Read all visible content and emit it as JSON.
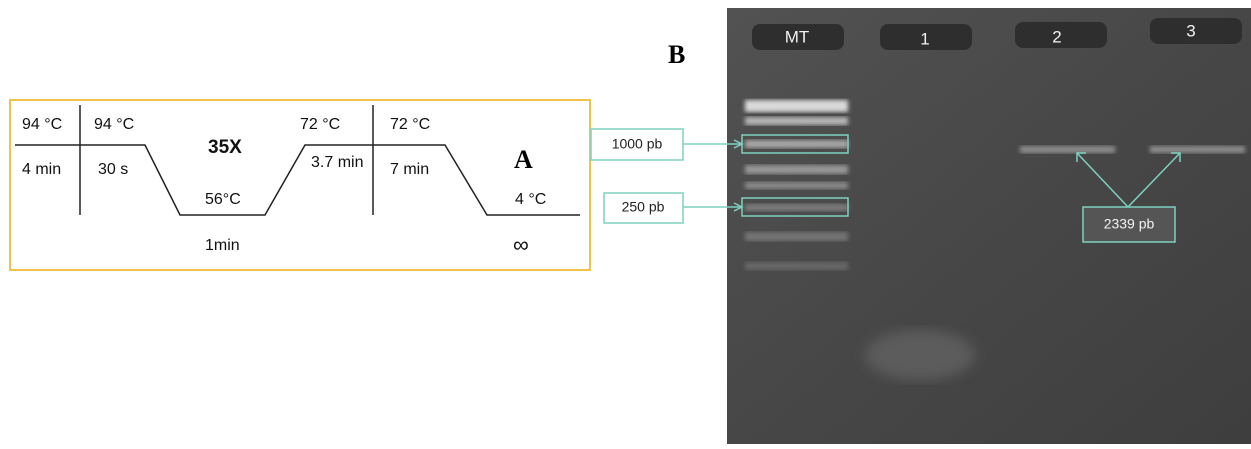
{
  "panel_a": {
    "label": "A",
    "cycles": "35X",
    "step_temps": [
      "94 °C",
      "94 °C",
      "72 °C",
      "72 °C"
    ],
    "step_times": [
      "4 min",
      "30 s",
      "3.7 min",
      "7 min"
    ],
    "annealing_temp": "56°C",
    "annealing_time": "1min",
    "hold_temp": "4 °C",
    "hold_time": "∞"
  },
  "panel_b": {
    "label": "B",
    "lanes": [
      "MT",
      "1",
      "2",
      "3"
    ],
    "markers": [
      "1000 pb",
      "250 pb"
    ],
    "product": "2339 pb"
  }
}
